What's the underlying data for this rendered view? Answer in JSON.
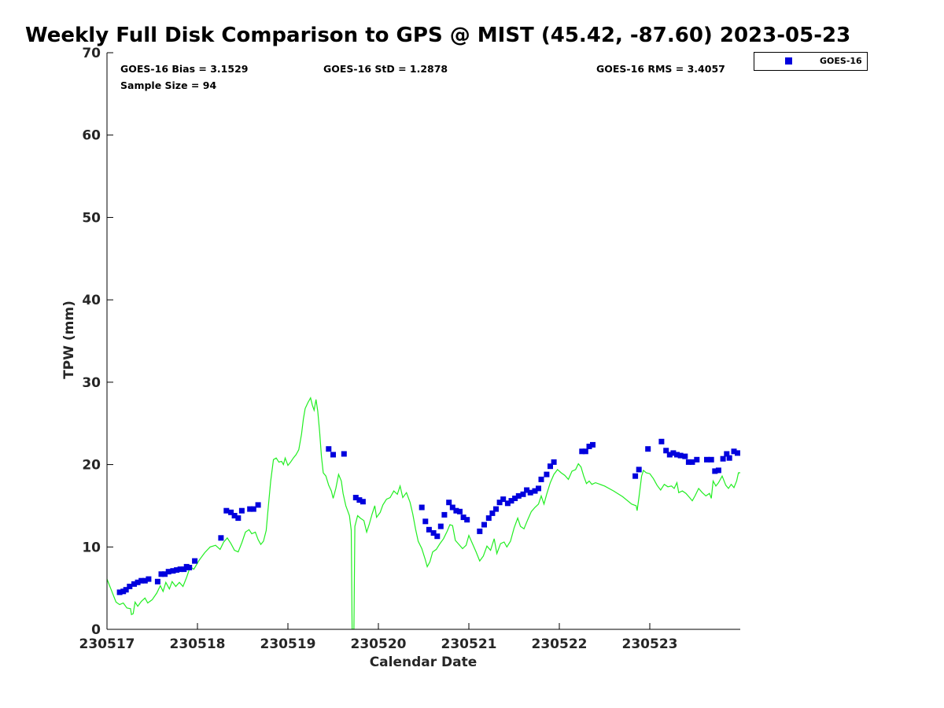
{
  "chart_data": {
    "type": "scatter",
    "title": "Weekly Full Disk Comparison to GPS @ MIST (45.42, -87.60) 2023-05-23",
    "xlabel": "Calendar Date",
    "ylabel": "TPW (mm)",
    "xlim": [
      0,
      7
    ],
    "ylim": [
      0,
      70
    ],
    "y_ticks": [
      0,
      10,
      20,
      30,
      40,
      50,
      60,
      70
    ],
    "x_ticks": [
      {
        "x": 0,
        "label": "230517"
      },
      {
        "x": 1,
        "label": "230518"
      },
      {
        "x": 2,
        "label": "230519"
      },
      {
        "x": 3,
        "label": "230520"
      },
      {
        "x": 4,
        "label": "230521"
      },
      {
        "x": 5,
        "label": "230522"
      },
      {
        "x": 6,
        "label": "230523"
      }
    ],
    "x_units": "days since 230517 00Z",
    "grid": false,
    "legend_position": "top-right",
    "stats": {
      "bias": "GOES-16 Bias = 3.1529",
      "std": "GOES-16 StD = 1.2878",
      "rms": "GOES-16 RMS = 3.4057",
      "sample": "Sample Size = 94"
    },
    "series": [
      {
        "name": "GOES-16",
        "kind": "points",
        "color": "#0000dd",
        "marker": "square",
        "points": [
          [
            0.14,
            4.5
          ],
          [
            0.18,
            4.6
          ],
          [
            0.21,
            4.8
          ],
          [
            0.25,
            5.2
          ],
          [
            0.3,
            5.5
          ],
          [
            0.34,
            5.7
          ],
          [
            0.38,
            5.9
          ],
          [
            0.42,
            5.9
          ],
          [
            0.46,
            6.1
          ],
          [
            0.56,
            5.8
          ],
          [
            0.6,
            6.7
          ],
          [
            0.64,
            6.7
          ],
          [
            0.68,
            7.0
          ],
          [
            0.73,
            7.1
          ],
          [
            0.77,
            7.2
          ],
          [
            0.81,
            7.3
          ],
          [
            0.85,
            7.3
          ],
          [
            0.88,
            7.6
          ],
          [
            0.91,
            7.5
          ],
          [
            0.97,
            8.3
          ],
          [
            1.26,
            11.1
          ],
          [
            1.32,
            14.4
          ],
          [
            1.37,
            14.2
          ],
          [
            1.41,
            13.8
          ],
          [
            1.45,
            13.5
          ],
          [
            1.49,
            14.4
          ],
          [
            1.58,
            14.6
          ],
          [
            1.62,
            14.6
          ],
          [
            1.67,
            15.1
          ],
          [
            2.45,
            21.9
          ],
          [
            2.5,
            21.2
          ],
          [
            2.62,
            21.3
          ],
          [
            2.75,
            16.0
          ],
          [
            2.79,
            15.7
          ],
          [
            2.83,
            15.5
          ],
          [
            3.48,
            14.8
          ],
          [
            3.52,
            13.1
          ],
          [
            3.56,
            12.1
          ],
          [
            3.61,
            11.7
          ],
          [
            3.65,
            11.3
          ],
          [
            3.69,
            12.5
          ],
          [
            3.73,
            13.9
          ],
          [
            3.78,
            15.4
          ],
          [
            3.82,
            14.8
          ],
          [
            3.86,
            14.4
          ],
          [
            3.9,
            14.3
          ],
          [
            3.94,
            13.6
          ],
          [
            3.98,
            13.3
          ],
          [
            4.12,
            11.9
          ],
          [
            4.17,
            12.7
          ],
          [
            4.22,
            13.5
          ],
          [
            4.26,
            14.1
          ],
          [
            4.3,
            14.6
          ],
          [
            4.34,
            15.4
          ],
          [
            4.38,
            15.8
          ],
          [
            4.43,
            15.3
          ],
          [
            4.47,
            15.6
          ],
          [
            4.51,
            15.9
          ],
          [
            4.55,
            16.2
          ],
          [
            4.6,
            16.4
          ],
          [
            4.64,
            16.9
          ],
          [
            4.68,
            16.6
          ],
          [
            4.73,
            16.8
          ],
          [
            4.77,
            17.1
          ],
          [
            4.8,
            18.2
          ],
          [
            4.86,
            18.8
          ],
          [
            4.9,
            19.8
          ],
          [
            4.94,
            20.3
          ],
          [
            5.25,
            21.6
          ],
          [
            5.29,
            21.6
          ],
          [
            5.33,
            22.2
          ],
          [
            5.37,
            22.4
          ],
          [
            5.84,
            18.6
          ],
          [
            5.88,
            19.4
          ],
          [
            5.98,
            21.9
          ],
          [
            6.13,
            22.8
          ],
          [
            6.18,
            21.7
          ],
          [
            6.22,
            21.2
          ],
          [
            6.26,
            21.4
          ],
          [
            6.3,
            21.2
          ],
          [
            6.34,
            21.1
          ],
          [
            6.39,
            21.0
          ],
          [
            6.43,
            20.3
          ],
          [
            6.47,
            20.3
          ],
          [
            6.52,
            20.6
          ],
          [
            6.63,
            20.6
          ],
          [
            6.68,
            20.6
          ],
          [
            6.72,
            19.2
          ],
          [
            6.76,
            19.3
          ],
          [
            6.81,
            20.7
          ],
          [
            6.85,
            21.3
          ],
          [
            6.88,
            20.8
          ],
          [
            6.93,
            21.6
          ],
          [
            6.97,
            21.4
          ]
        ]
      },
      {
        "name": "",
        "kind": "line",
        "color": "#22ee22",
        "points": [
          [
            0.0,
            6.1
          ],
          [
            0.05,
            4.7
          ],
          [
            0.1,
            3.3
          ],
          [
            0.14,
            3.0
          ],
          [
            0.18,
            3.2
          ],
          [
            0.22,
            2.6
          ],
          [
            0.26,
            2.5
          ],
          [
            0.27,
            1.8
          ],
          [
            0.29,
            1.9
          ],
          [
            0.31,
            3.3
          ],
          [
            0.34,
            2.8
          ],
          [
            0.38,
            3.4
          ],
          [
            0.42,
            3.8
          ],
          [
            0.45,
            3.2
          ],
          [
            0.5,
            3.6
          ],
          [
            0.55,
            4.4
          ],
          [
            0.59,
            5.3
          ],
          [
            0.62,
            4.6
          ],
          [
            0.65,
            5.7
          ],
          [
            0.69,
            4.9
          ],
          [
            0.72,
            5.8
          ],
          [
            0.76,
            5.2
          ],
          [
            0.8,
            5.7
          ],
          [
            0.84,
            5.2
          ],
          [
            0.88,
            6.3
          ],
          [
            0.92,
            7.6
          ],
          [
            0.96,
            7.3
          ],
          [
            1.02,
            8.4
          ],
          [
            1.08,
            9.3
          ],
          [
            1.14,
            10.0
          ],
          [
            1.2,
            10.2
          ],
          [
            1.25,
            9.7
          ],
          [
            1.29,
            10.6
          ],
          [
            1.33,
            11.1
          ],
          [
            1.37,
            10.4
          ],
          [
            1.41,
            9.6
          ],
          [
            1.45,
            9.4
          ],
          [
            1.49,
            10.5
          ],
          [
            1.53,
            11.8
          ],
          [
            1.57,
            12.1
          ],
          [
            1.6,
            11.6
          ],
          [
            1.64,
            11.8
          ],
          [
            1.67,
            10.9
          ],
          [
            1.7,
            10.3
          ],
          [
            1.73,
            10.7
          ],
          [
            1.76,
            12.0
          ],
          [
            1.78,
            14.5
          ],
          [
            1.81,
            18.0
          ],
          [
            1.84,
            20.6
          ],
          [
            1.87,
            20.8
          ],
          [
            1.9,
            20.3
          ],
          [
            1.93,
            20.4
          ],
          [
            1.95,
            20.0
          ],
          [
            1.97,
            20.8
          ],
          [
            2.0,
            19.9
          ],
          [
            2.03,
            20.3
          ],
          [
            2.06,
            20.8
          ],
          [
            2.09,
            21.2
          ],
          [
            2.12,
            21.8
          ],
          [
            2.15,
            23.7
          ],
          [
            2.17,
            25.5
          ],
          [
            2.19,
            26.8
          ],
          [
            2.22,
            27.5
          ],
          [
            2.25,
            28.1
          ],
          [
            2.27,
            27.2
          ],
          [
            2.29,
            26.6
          ],
          [
            2.31,
            27.9
          ],
          [
            2.33,
            26.5
          ],
          [
            2.35,
            24.0
          ],
          [
            2.37,
            21.0
          ],
          [
            2.39,
            19.0
          ],
          [
            2.42,
            18.6
          ],
          [
            2.45,
            17.5
          ],
          [
            2.48,
            16.8
          ],
          [
            2.5,
            15.9
          ],
          [
            2.53,
            17.1
          ],
          [
            2.56,
            18.8
          ],
          [
            2.59,
            18.0
          ],
          [
            2.61,
            16.5
          ],
          [
            2.64,
            15.0
          ],
          [
            2.66,
            14.4
          ],
          [
            2.68,
            13.8
          ],
          [
            2.7,
            12.0
          ],
          [
            2.71,
            0
          ],
          [
            2.73,
            0
          ],
          [
            2.74,
            12.5
          ],
          [
            2.77,
            13.8
          ],
          [
            2.8,
            13.5
          ],
          [
            2.84,
            13.2
          ],
          [
            2.87,
            11.8
          ],
          [
            2.9,
            12.8
          ],
          [
            2.93,
            14.0
          ],
          [
            2.96,
            15.0
          ],
          [
            2.98,
            13.6
          ],
          [
            3.02,
            14.2
          ],
          [
            3.05,
            15.1
          ],
          [
            3.09,
            15.8
          ],
          [
            3.13,
            16.0
          ],
          [
            3.17,
            16.8
          ],
          [
            3.21,
            16.4
          ],
          [
            3.24,
            17.4
          ],
          [
            3.27,
            16.0
          ],
          [
            3.31,
            16.6
          ],
          [
            3.35,
            15.4
          ],
          [
            3.38,
            14.0
          ],
          [
            3.41,
            12.2
          ],
          [
            3.44,
            10.7
          ],
          [
            3.48,
            9.8
          ],
          [
            3.52,
            8.4
          ],
          [
            3.54,
            7.6
          ],
          [
            3.57,
            8.2
          ],
          [
            3.6,
            9.4
          ],
          [
            3.64,
            9.7
          ],
          [
            3.68,
            10.4
          ],
          [
            3.72,
            11.0
          ],
          [
            3.76,
            11.9
          ],
          [
            3.79,
            12.7
          ],
          [
            3.82,
            12.6
          ],
          [
            3.85,
            10.8
          ],
          [
            3.89,
            10.3
          ],
          [
            3.93,
            9.8
          ],
          [
            3.97,
            10.2
          ],
          [
            4.0,
            11.4
          ],
          [
            4.04,
            10.4
          ],
          [
            4.08,
            9.4
          ],
          [
            4.12,
            8.3
          ],
          [
            4.16,
            8.9
          ],
          [
            4.2,
            10.1
          ],
          [
            4.24,
            9.6
          ],
          [
            4.28,
            11.0
          ],
          [
            4.31,
            9.2
          ],
          [
            4.35,
            10.4
          ],
          [
            4.39,
            10.6
          ],
          [
            4.42,
            10.0
          ],
          [
            4.46,
            10.7
          ],
          [
            4.5,
            12.3
          ],
          [
            4.54,
            13.5
          ],
          [
            4.57,
            12.5
          ],
          [
            4.61,
            12.2
          ],
          [
            4.65,
            13.3
          ],
          [
            4.69,
            14.3
          ],
          [
            4.73,
            14.8
          ],
          [
            4.77,
            15.2
          ],
          [
            4.8,
            16.2
          ],
          [
            4.83,
            15.2
          ],
          [
            4.86,
            16.4
          ],
          [
            4.9,
            17.8
          ],
          [
            4.94,
            18.8
          ],
          [
            4.98,
            19.4
          ],
          [
            5.02,
            19.0
          ],
          [
            5.06,
            18.7
          ],
          [
            5.1,
            18.2
          ],
          [
            5.14,
            19.2
          ],
          [
            5.18,
            19.4
          ],
          [
            5.21,
            20.1
          ],
          [
            5.24,
            19.7
          ],
          [
            5.27,
            18.6
          ],
          [
            5.3,
            17.7
          ],
          [
            5.33,
            18.0
          ],
          [
            5.36,
            17.6
          ],
          [
            5.4,
            17.8
          ],
          [
            5.5,
            17.4
          ],
          [
            5.6,
            16.8
          ],
          [
            5.7,
            16.1
          ],
          [
            5.8,
            15.2
          ],
          [
            5.85,
            15.0
          ],
          [
            5.86,
            14.4
          ],
          [
            5.88,
            16.0
          ],
          [
            5.91,
            18.6
          ],
          [
            5.93,
            19.3
          ],
          [
            5.96,
            19.0
          ],
          [
            6.0,
            18.9
          ],
          [
            6.04,
            18.3
          ],
          [
            6.08,
            17.5
          ],
          [
            6.12,
            16.9
          ],
          [
            6.16,
            17.6
          ],
          [
            6.2,
            17.3
          ],
          [
            6.24,
            17.4
          ],
          [
            6.27,
            17.1
          ],
          [
            6.3,
            17.8
          ],
          [
            6.32,
            16.6
          ],
          [
            6.36,
            16.8
          ],
          [
            6.4,
            16.5
          ],
          [
            6.44,
            16.0
          ],
          [
            6.47,
            15.6
          ],
          [
            6.5,
            16.2
          ],
          [
            6.54,
            17.1
          ],
          [
            6.58,
            16.6
          ],
          [
            6.62,
            16.2
          ],
          [
            6.66,
            16.5
          ],
          [
            6.68,
            15.9
          ],
          [
            6.7,
            18.0
          ],
          [
            6.73,
            17.4
          ],
          [
            6.76,
            17.8
          ],
          [
            6.8,
            18.6
          ],
          [
            6.84,
            17.5
          ],
          [
            6.87,
            17.1
          ],
          [
            6.9,
            17.6
          ],
          [
            6.93,
            17.2
          ],
          [
            6.96,
            18.0
          ],
          [
            6.98,
            19.0
          ],
          [
            7.0,
            19.0
          ]
        ]
      }
    ]
  }
}
